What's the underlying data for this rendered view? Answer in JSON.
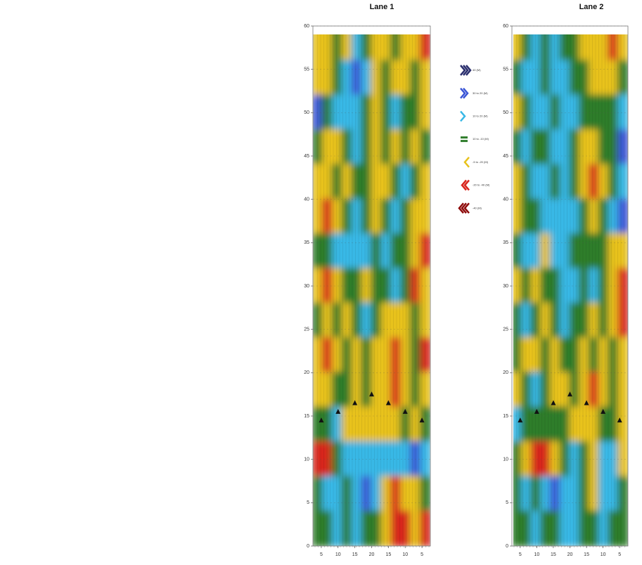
{
  "chart_data": [
    {
      "type": "heatmap",
      "title": "Lane 1",
      "ylim": [
        0,
        60
      ],
      "yticks": [
        0,
        5,
        10,
        15,
        20,
        25,
        30,
        35,
        40,
        45,
        50,
        55,
        60
      ],
      "categories": [
        "5",
        "10",
        "15",
        "20",
        "15",
        "10",
        "5"
      ],
      "markers": [
        14.5,
        15.5,
        16.5,
        17.5,
        16.5,
        15.5,
        14.5
      ],
      "z": [
        [
          1,
          1,
          0,
          1,
          -1,
          0,
          1,
          1,
          0,
          1,
          1,
          2
        ],
        [
          1,
          1,
          0,
          -1,
          -2,
          -1,
          1,
          0,
          1,
          1,
          0,
          1
        ],
        [
          -2,
          0,
          -1,
          -1,
          -1,
          0,
          1,
          0,
          -1,
          0,
          0,
          1
        ],
        [
          0,
          1,
          1,
          0,
          -1,
          0,
          1,
          0,
          1,
          0,
          1,
          0
        ],
        [
          1,
          1,
          0,
          1,
          0,
          0,
          1,
          1,
          0,
          -1,
          0,
          1
        ],
        [
          1,
          2,
          1,
          0,
          -1,
          0,
          1,
          0,
          -1,
          0,
          1,
          1
        ],
        [
          0,
          0,
          -1,
          -1,
          -1,
          -1,
          0,
          -1,
          0,
          0,
          1,
          2
        ],
        [
          1,
          2,
          1,
          0,
          0,
          1,
          0,
          0,
          -1,
          0,
          2,
          1
        ],
        [
          0,
          1,
          0,
          1,
          0,
          -1,
          0,
          1,
          1,
          1,
          0,
          1
        ],
        [
          1,
          2,
          1,
          0,
          1,
          0,
          1,
          1,
          2,
          1,
          0,
          2
        ],
        [
          1,
          1,
          0,
          0,
          1,
          0,
          1,
          1,
          2,
          1,
          0,
          1
        ],
        [
          0,
          0,
          -1,
          1,
          1,
          1,
          1,
          1,
          1,
          0,
          1,
          0
        ],
        [
          2,
          2,
          0,
          -1,
          -1,
          -1,
          -1,
          -1,
          -1,
          -1,
          -2,
          -1
        ],
        [
          0,
          -1,
          -1,
          0,
          -1,
          -2,
          -1,
          1,
          2,
          1,
          1,
          0
        ],
        [
          0,
          0,
          -1,
          0,
          -1,
          0,
          0,
          1,
          2,
          2,
          1,
          2
        ]
      ],
      "legend": [
        {
          "label": "40 (M)",
          "level": -3,
          "color": "#2b2f6e"
        },
        {
          "label": "30 to 20 (M)",
          "level": -2,
          "color": "#3a55d6"
        },
        {
          "label": "10 to 20 (M)",
          "level": -1,
          "color": "#39b8e6"
        },
        {
          "label": "10 to -10 (M)",
          "level": 0,
          "color": "#2f7d2c"
        },
        {
          "label": "-5 to -20 (M)",
          "level": 1,
          "color": "#e8c21c"
        },
        {
          "label": "-20 to -40 (M)",
          "level": 2,
          "color": "#d8261d"
        },
        {
          "label": "-40 (M)",
          "level": 3,
          "color": "#8e0b0b"
        }
      ]
    },
    {
      "type": "heatmap",
      "title": "Lane 2",
      "ylim": [
        0,
        60
      ],
      "yticks": [
        0,
        5,
        10,
        15,
        20,
        25,
        30,
        35,
        40,
        45,
        50,
        55,
        60
      ],
      "categories": [
        "5",
        "10",
        "15",
        "20",
        "15",
        "10",
        "5"
      ],
      "markers": [
        14.5,
        15.5,
        16.5,
        17.5,
        16.5,
        15.5,
        14.5
      ],
      "z": [
        [
          1,
          0,
          -1,
          0,
          -1,
          0,
          0,
          1,
          1,
          1,
          2,
          1
        ],
        [
          0,
          -1,
          -1,
          0,
          -1,
          -1,
          0,
          0,
          1,
          1,
          1,
          0
        ],
        [
          1,
          0,
          -1,
          -1,
          0,
          -1,
          -1,
          0,
          0,
          0,
          0,
          -1
        ],
        [
          0,
          -1,
          0,
          0,
          -1,
          -1,
          0,
          1,
          1,
          0,
          0,
          -2
        ],
        [
          1,
          0,
          -1,
          -1,
          0,
          -1,
          0,
          1,
          2,
          1,
          0,
          -1
        ],
        [
          1,
          0,
          0,
          -1,
          -1,
          -1,
          -1,
          0,
          1,
          0,
          -1,
          -2
        ],
        [
          0,
          -1,
          -1,
          1,
          -1,
          -1,
          0,
          0,
          0,
          0,
          1,
          1
        ],
        [
          1,
          0,
          1,
          0,
          0,
          -1,
          -1,
          0,
          -1,
          0,
          1,
          2
        ],
        [
          0,
          -1,
          0,
          1,
          0,
          -1,
          0,
          0,
          1,
          0,
          1,
          2
        ],
        [
          0,
          1,
          1,
          0,
          1,
          0,
          0,
          1,
          0,
          1,
          0,
          1
        ],
        [
          1,
          0,
          -1,
          0,
          1,
          1,
          0,
          1,
          2,
          1,
          0,
          1
        ],
        [
          -1,
          0,
          0,
          0,
          0,
          0,
          1,
          1,
          1,
          0,
          0,
          1
        ],
        [
          0,
          1,
          2,
          2,
          1,
          0,
          -1,
          0,
          1,
          -1,
          -1,
          1
        ],
        [
          0,
          -1,
          0,
          -1,
          -2,
          -1,
          -1,
          0,
          1,
          -1,
          -1,
          0
        ],
        [
          0,
          0,
          -1,
          0,
          0,
          -1,
          -1,
          0,
          0,
          -1,
          0,
          0
        ]
      ]
    }
  ]
}
